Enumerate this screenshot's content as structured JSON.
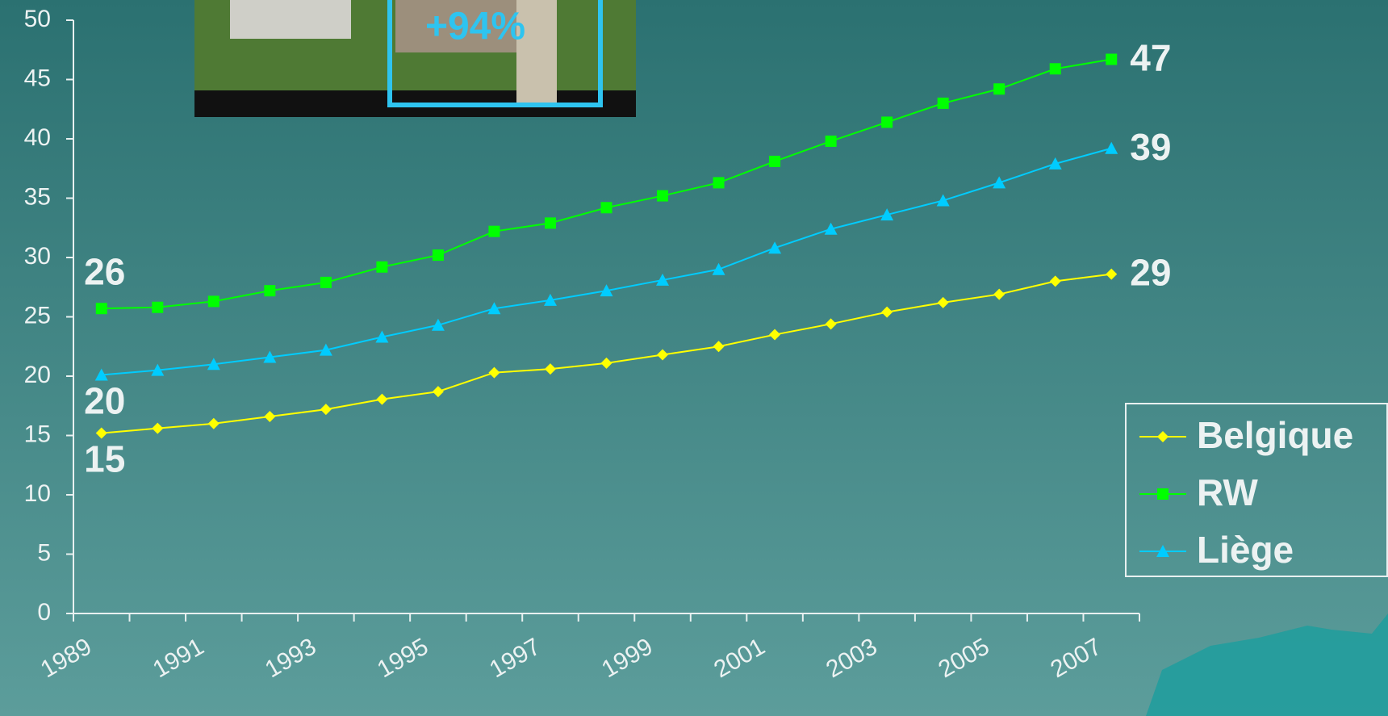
{
  "chart_data": {
    "type": "line",
    "annotations": [
      "+94%"
    ],
    "categories": [
      "1989",
      null,
      "1991",
      null,
      "1993",
      null,
      "1995",
      null,
      "1997",
      null,
      "1999",
      null,
      "2001",
      null,
      "2003",
      null,
      "2005",
      null,
      "2007"
    ],
    "series": [
      {
        "name": "Belgique",
        "color": "#ffff00",
        "marker": "diamond",
        "values": [
          15.2,
          15.6,
          16.0,
          16.6,
          17.2,
          18.05,
          18.7,
          20.3,
          20.6,
          21.1,
          21.8,
          22.5,
          23.5,
          24.4,
          25.4,
          26.2,
          26.9,
          28.0,
          28.6
        ],
        "value_labels": [
          "15",
          null,
          null,
          null,
          null,
          null,
          null,
          null,
          null,
          null,
          null,
          null,
          null,
          null,
          null,
          null,
          null,
          null,
          "29"
        ]
      },
      {
        "name": "RW",
        "color": "#00ff00",
        "marker": "square",
        "values": [
          25.7,
          25.8,
          26.3,
          27.2,
          27.9,
          29.2,
          30.2,
          32.2,
          32.9,
          34.2,
          35.2,
          36.3,
          38.1,
          39.8,
          41.4,
          43.0,
          44.2,
          45.9,
          46.7
        ],
        "value_labels": [
          "26",
          null,
          null,
          null,
          null,
          null,
          null,
          null,
          null,
          null,
          null,
          null,
          null,
          null,
          null,
          null,
          null,
          null,
          "47"
        ]
      },
      {
        "name": "Liège",
        "color": "#00ccff",
        "marker": "triangle",
        "values": [
          20.1,
          20.5,
          21.0,
          21.6,
          22.2,
          23.3,
          24.3,
          25.7,
          26.4,
          27.2,
          28.1,
          29.0,
          30.8,
          32.4,
          33.6,
          34.8,
          36.3,
          37.9,
          39.2
        ],
        "value_labels": [
          "20",
          null,
          null,
          null,
          null,
          null,
          null,
          null,
          null,
          null,
          null,
          null,
          null,
          null,
          null,
          null,
          null,
          null,
          "39"
        ]
      }
    ],
    "ylim": [
      0,
      50
    ],
    "yticks": [
      0,
      5,
      10,
      15,
      20,
      25,
      30,
      35,
      40,
      45,
      50
    ],
    "grid": false,
    "legend": "right"
  }
}
